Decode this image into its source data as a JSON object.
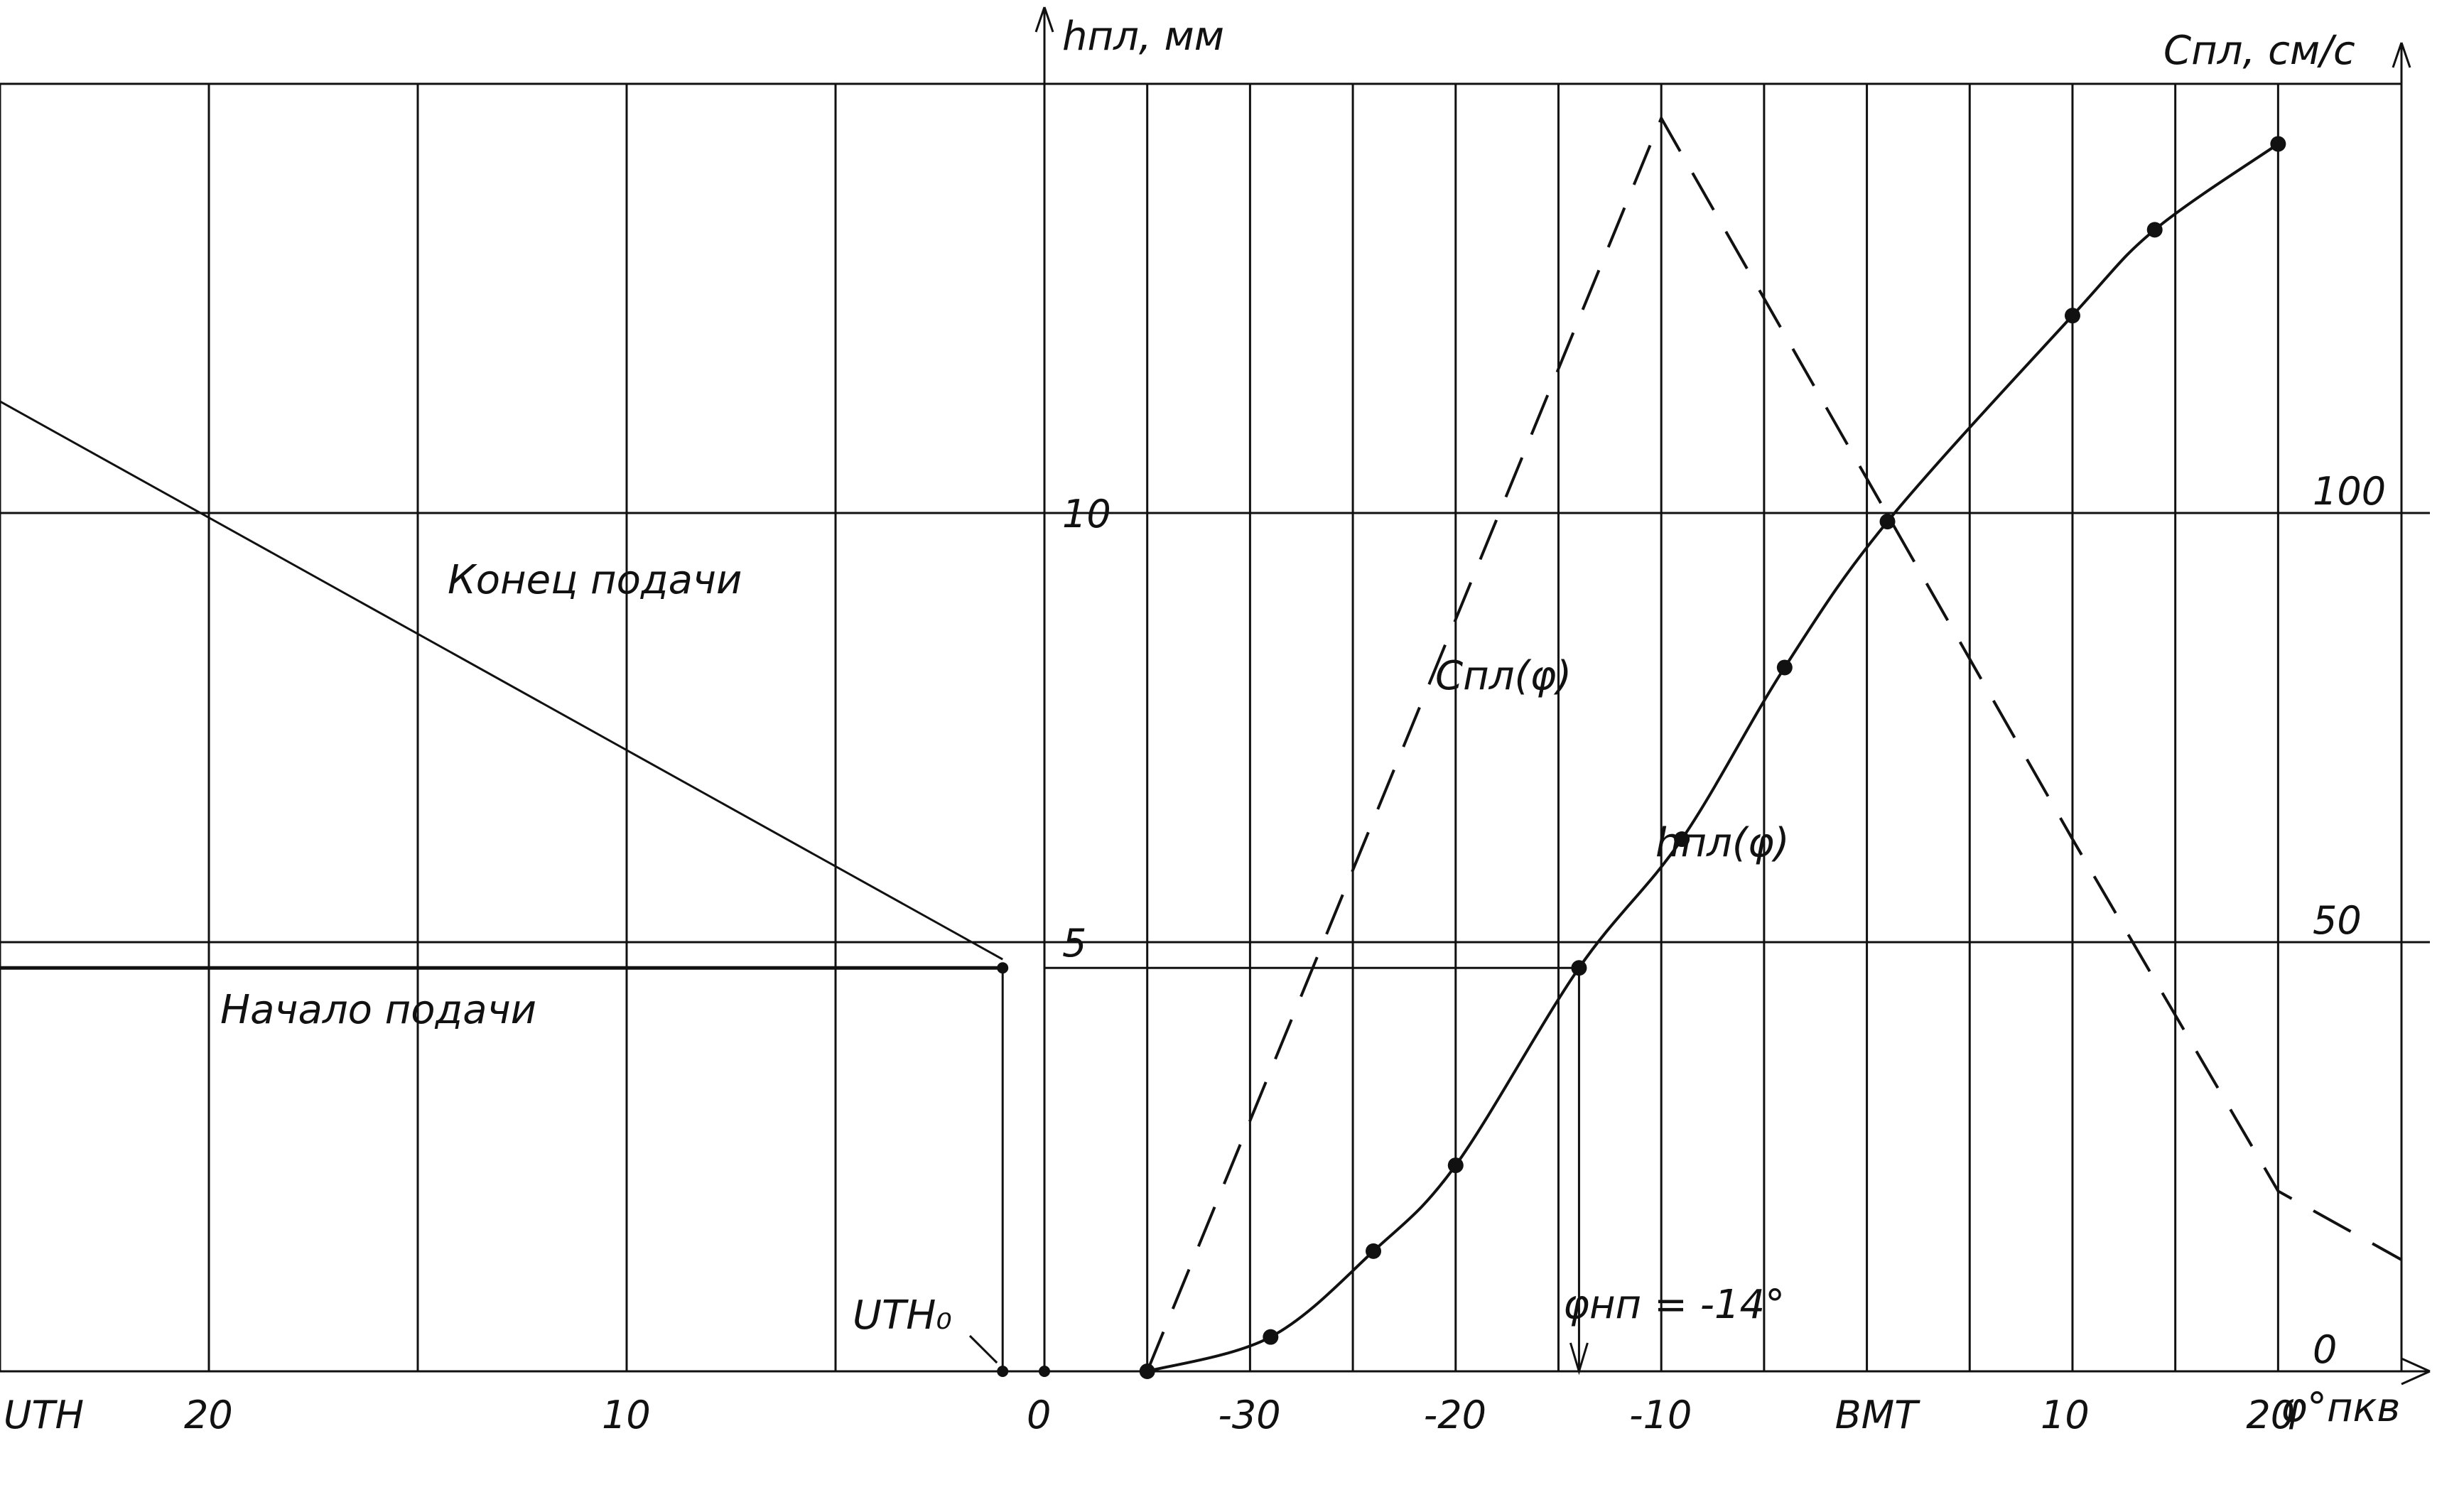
{
  "chart_data": {
    "type": "line",
    "title": "",
    "left_panel": {
      "description_labels": {
        "end_line": "Конец подачи",
        "start_line": "Начало подачи"
      },
      "x_tick_labels": [
        "UTH",
        "20",
        "10",
        "0"
      ],
      "lines": [
        {
          "name": "Конец подачи",
          "x": [
            25,
            1
          ],
          "y": [
            11.3,
            4.8
          ]
        },
        {
          "name": "Начало подачи",
          "x": [
            25,
            1
          ],
          "y": [
            4.7,
            4.7
          ]
        }
      ],
      "annotation": "UTH₀"
    },
    "right_panel": {
      "xlabel": "φ°пкв",
      "y_left_label": "hпл, мм",
      "y_right_label": "Спл, см/с",
      "x_tick_labels": [
        "-30",
        "-20",
        "-10",
        "BMT",
        "10",
        "20"
      ],
      "x_ticks": [
        -30,
        -20,
        -10,
        0,
        10,
        20
      ],
      "y_left_ticks": [
        "5",
        "10"
      ],
      "y_right_ticks": [
        "0",
        "50",
        "100"
      ],
      "xlim": [
        -40,
        26
      ],
      "y_left_lim": [
        0,
        15
      ],
      "y_right_lim": [
        0,
        150
      ],
      "series": [
        {
          "name": "hпл(φ)",
          "style": "solid",
          "x": [
            -35,
            -29,
            -24,
            -20,
            -14,
            -9,
            -4,
            1,
            10,
            14,
            20
          ],
          "y": [
            0,
            0.4,
            1.4,
            2.4,
            4.7,
            6.2,
            8.2,
            9.9,
            12.3,
            13.3,
            14.3
          ]
        },
        {
          "name": "Спл(φ)",
          "style": "dashed",
          "x": [
            -35,
            -10,
            10,
            20,
            26
          ],
          "y_right": [
            0,
            146,
            62,
            21,
            13
          ]
        }
      ],
      "annotations": {
        "curve_h_label": "hпл(φ)",
        "curve_c_label": "Спл(φ)",
        "phi_label": "φнп = -14°",
        "left_zero": "0",
        "phi_value": -14,
        "phi_h_value": 4.7
      }
    },
    "grid": true
  }
}
